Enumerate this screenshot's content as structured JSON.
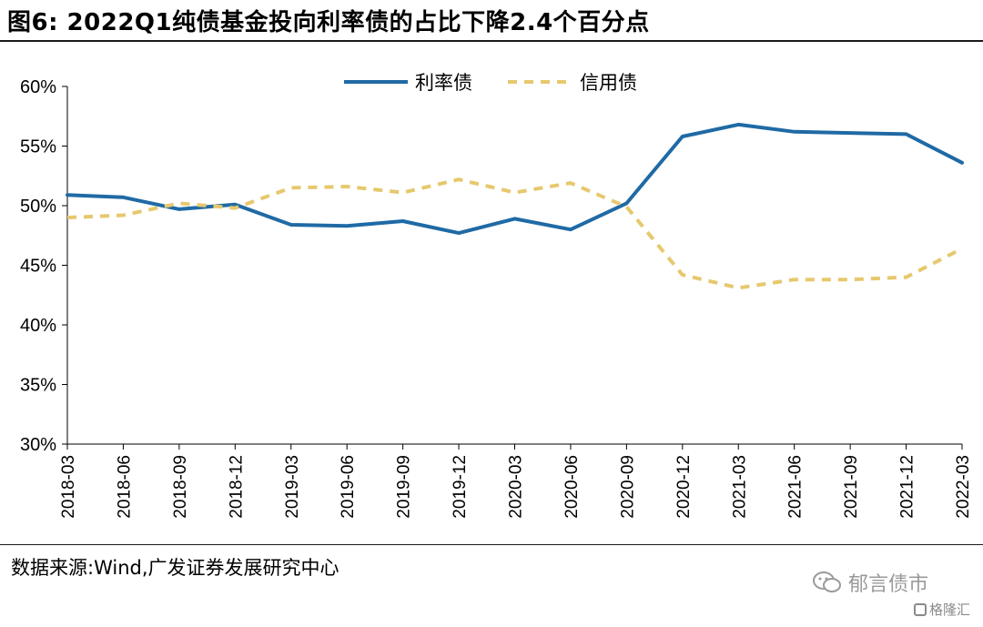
{
  "header": {
    "title": "图6:  2022Q1纯债基金投向利率债的占比下降2.4个百分点"
  },
  "footer": {
    "source": "数据来源:Wind,广发证券发展研究中心"
  },
  "watermark": {
    "account": "郁言债市",
    "brand": "格隆汇"
  },
  "colors": {
    "rate_bond": "#1f6aa5",
    "credit_bond": "#e6c86e",
    "axis": "#000000"
  },
  "chart_data": {
    "type": "line",
    "x": [
      "2018-03",
      "2018-06",
      "2018-09",
      "2018-12",
      "2019-03",
      "2019-06",
      "2019-09",
      "2019-12",
      "2020-03",
      "2020-06",
      "2020-09",
      "2020-12",
      "2021-03",
      "2021-06",
      "2021-09",
      "2021-12",
      "2022-03"
    ],
    "series": [
      {
        "name": "利率债",
        "style": "solid",
        "color": "#1f6aa5",
        "values": [
          50.9,
          50.7,
          49.7,
          50.1,
          48.4,
          48.3,
          48.7,
          47.7,
          48.9,
          48.0,
          50.2,
          55.8,
          56.8,
          56.2,
          56.1,
          56.0,
          53.6
        ]
      },
      {
        "name": "信用债",
        "style": "dashed",
        "color": "#e6c86e",
        "values": [
          49.0,
          49.2,
          50.2,
          49.8,
          51.5,
          51.6,
          51.1,
          52.2,
          51.1,
          51.9,
          49.9,
          44.2,
          43.1,
          43.8,
          43.8,
          44.0,
          46.4
        ]
      }
    ],
    "yticks": [
      "30%",
      "35%",
      "40%",
      "45%",
      "50%",
      "55%",
      "60%"
    ],
    "ylim": [
      30,
      60
    ],
    "legend_position": "top-center",
    "grid": false
  }
}
